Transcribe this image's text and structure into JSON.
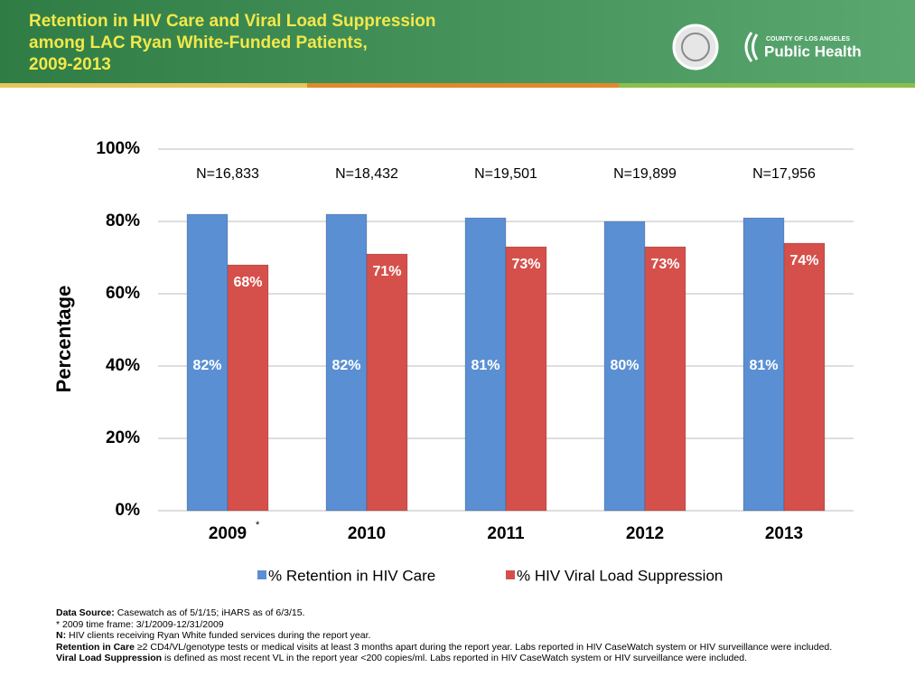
{
  "header": {
    "title_lines": [
      "Retention in HIV Care and Viral Load Suppression",
      "among LAC Ryan White-Funded Patients,",
      "2009-2013"
    ],
    "logo_small": "COUNTY OF LOS ANGELES",
    "logo_big": "Public Health"
  },
  "chart_data": {
    "type": "bar",
    "categories": [
      "2009",
      "2010",
      "2011",
      "2012",
      "2013"
    ],
    "category_marker": "*",
    "n_labels": [
      "N=16,833",
      "N=18,432",
      "N=19,501",
      "N=19,899",
      "N=17,956"
    ],
    "ylabel": "Percentage",
    "ylim": [
      0,
      100
    ],
    "yticks": [
      {
        "value": 0,
        "label": "0%"
      },
      {
        "value": 20,
        "label": "20%"
      },
      {
        "value": 40,
        "label": "40%"
      },
      {
        "value": 60,
        "label": "60%"
      },
      {
        "value": 80,
        "label": "80%"
      },
      {
        "value": 100,
        "label": "100%"
      }
    ],
    "grid": true,
    "legend": "bottom",
    "series": [
      {
        "name": "% Retention in HIV Care",
        "color": "#5b8fd3",
        "values": [
          82,
          82,
          81,
          80,
          81
        ],
        "value_labels": [
          "82%",
          "82%",
          "81%",
          "80%",
          "81%"
        ]
      },
      {
        "name": "% HIV Viral Load Suppression",
        "color": "#d6504b",
        "values": [
          68,
          71,
          73,
          73,
          74
        ],
        "value_labels": [
          "68%",
          "71%",
          "73%",
          "73%",
          "74%"
        ]
      }
    ]
  },
  "footnotes": [
    {
      "bold": "Data Source:",
      "text": " Casewatch as of  5/1/15; iHARS as of 6/3/15."
    },
    {
      "text": "* 2009 time frame: 3/1/2009-12/31/2009"
    },
    {
      "bold": "N:",
      "text": " HIV clients receiving Ryan White funded services during the report year."
    },
    {
      "bold": "Retention in Care",
      "text": " ≥2 CD4/VL/genotype tests or medical visits at least 3 months apart during the report year. Labs reported in HIV CaseWatch system or HIV surveillance were included."
    },
    {
      "bold": "Viral Load Suppression",
      "text": " is defined as most recent VL in the report year <200 copies/ml. Labs reported in HIV CaseWatch system or HIV surveillance were included."
    }
  ]
}
